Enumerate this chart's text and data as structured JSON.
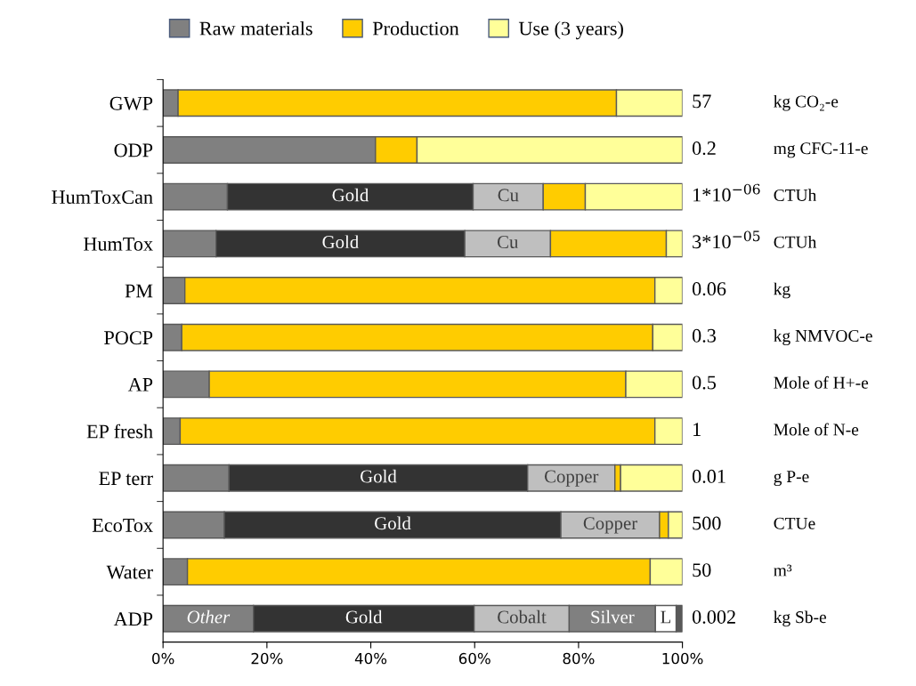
{
  "chart_data": {
    "type": "bar",
    "orientation": "horizontal",
    "stacked": true,
    "categories": [
      "GWP",
      "ODP",
      "HumToxCan",
      "HumTox",
      "PM",
      "POCP",
      "AP",
      "EP fresh",
      "EP terr",
      "EcoTox",
      "Water",
      "ADP"
    ],
    "series": [
      {
        "name": "Raw materials",
        "color": "#808080",
        "values": [
          2.9,
          40.9,
          12.4,
          10.2,
          4.2,
          3.6,
          8.9,
          3.3,
          12.7,
          11.8,
          4.7,
          17.4
        ],
        "value_labels": [
          null,
          null,
          null,
          null,
          null,
          null,
          null,
          null,
          null,
          null,
          null,
          "Other"
        ]
      },
      {
        "color": "#333333",
        "values": [
          null,
          null,
          47.3,
          47.9,
          null,
          null,
          null,
          null,
          57.5,
          64.8,
          null,
          42.5
        ],
        "value_labels": [
          null,
          null,
          "Gold",
          "Gold",
          null,
          null,
          null,
          null,
          "Gold",
          "Gold",
          null,
          "Gold"
        ]
      },
      {
        "color": "#bfbfbf",
        "values": [
          null,
          null,
          13.5,
          16.5,
          null,
          null,
          null,
          null,
          16.8,
          19.0,
          null,
          18.3
        ],
        "value_labels": [
          null,
          null,
          "Cu",
          "Cu",
          null,
          null,
          null,
          null,
          "Copper",
          "Copper",
          null,
          "Cobalt"
        ]
      },
      {
        "color": "#808080",
        "values": [
          null,
          null,
          null,
          null,
          null,
          null,
          null,
          null,
          null,
          null,
          null,
          16.6
        ],
        "value_labels": [
          null,
          null,
          null,
          null,
          null,
          null,
          null,
          null,
          null,
          null,
          null,
          "Silver"
        ]
      },
      {
        "color": "#ffffff",
        "values": [
          null,
          null,
          null,
          null,
          null,
          null,
          null,
          null,
          null,
          null,
          null,
          4.0
        ],
        "value_labels": [
          null,
          null,
          null,
          null,
          null,
          null,
          null,
          null,
          null,
          null,
          null,
          "L"
        ]
      },
      {
        "color": "#595959",
        "values": [
          null,
          null,
          null,
          null,
          null,
          null,
          null,
          null,
          null,
          null,
          null,
          1.2
        ]
      },
      {
        "name": "Production",
        "color": "#ffcc00",
        "values": [
          84.4,
          8.0,
          8.1,
          22.3,
          90.5,
          90.7,
          80.2,
          91.4,
          1.1,
          1.7,
          89.1,
          null
        ]
      },
      {
        "name": "Use (3 years)",
        "color": "#ffff99",
        "values": [
          12.7,
          51.1,
          18.7,
          3.1,
          5.3,
          5.7,
          10.9,
          5.3,
          11.9,
          2.7,
          6.2,
          null
        ]
      }
    ],
    "xlim": [
      0,
      100
    ],
    "xticks": [
      {
        "value": 0,
        "label": "0%"
      },
      {
        "value": 20,
        "label": "20%"
      },
      {
        "value": 40,
        "label": "40%"
      },
      {
        "value": 60,
        "label": "60%"
      },
      {
        "value": 80,
        "label": "80%"
      },
      {
        "value": 100,
        "label": "100%"
      }
    ],
    "legend": "top",
    "grid": false,
    "annotations": [
      "57",
      "kg CO₂-e",
      "0.2",
      "mg CFC-11-e",
      "1*10$^{−06}$",
      "CTUh",
      "3*10$^{−05}$",
      "CTUh",
      "0.06",
      "kg",
      "0.3",
      "kg NMVOC-e",
      "0.5",
      "Mole of H+-e",
      "1",
      "Mole of N-e",
      "0.01",
      "g P-e",
      "500",
      "CTUe",
      "50",
      "m³",
      "0.002",
      "kg Sb-e"
    ]
  }
}
